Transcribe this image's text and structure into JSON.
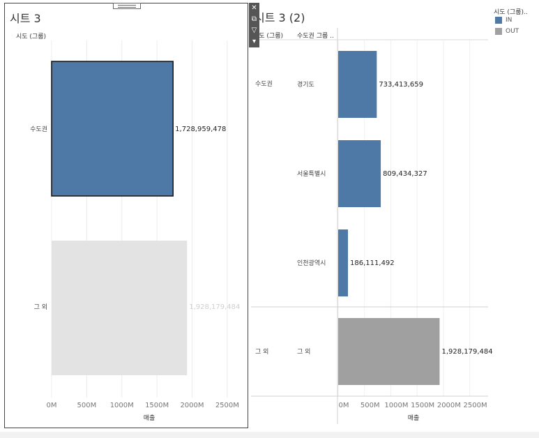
{
  "sheet1": {
    "title": "시트 3",
    "header": "시도 (그룹)",
    "xlabel": "매출",
    "ticks": [
      "0M",
      "500M",
      "1000M",
      "1500M",
      "2000M",
      "2500M"
    ]
  },
  "sheet2": {
    "title": "시트 3 (2)",
    "header_col1": "시도 (그룹)",
    "header_col2": "수도권 그룹 ..",
    "xlabel": "매출",
    "ticks": [
      "0M",
      "500M",
      "1000M",
      "1500M",
      "2000M",
      "2500M"
    ]
  },
  "legend": {
    "title": "시도 (그룹)..",
    "items": [
      {
        "label": "IN",
        "color": "#4e79a7"
      },
      {
        "label": "OUT",
        "color": "#a0a0a0"
      }
    ]
  },
  "toolbar": {
    "close_icon": "close-icon",
    "popout_icon": "popout-icon",
    "filter_icon": "filter-icon",
    "menu_icon": "dropdown-icon"
  },
  "chart_data": [
    {
      "type": "bar",
      "orientation": "horizontal",
      "title": "시트 3",
      "categories": [
        "수도권",
        "그 외"
      ],
      "values": [
        1728959478,
        1928179484
      ],
      "data_labels": [
        "1,728,959,478",
        "1,928,179,484"
      ],
      "colors": [
        "#4e79a7",
        "#e3e3e3"
      ],
      "xlabel": "매출",
      "xlim": [
        0,
        2700000000
      ],
      "grid": true
    },
    {
      "type": "bar",
      "orientation": "horizontal",
      "title": "시트 3 (2)",
      "groups": [
        "수도권",
        "수도권",
        "수도권",
        "그 외"
      ],
      "categories": [
        "경기도",
        "서울특별시",
        "인천광역시",
        "그 외"
      ],
      "values": [
        733413659,
        809434327,
        186111492,
        1928179484
      ],
      "data_labels": [
        "733,413,659",
        "809,434,327",
        "186,111,492",
        "1,928,179,484"
      ],
      "colors": [
        "#4e79a7",
        "#4e79a7",
        "#4e79a7",
        "#a0a0a0"
      ],
      "xlabel": "매출",
      "xlim": [
        0,
        2850000000
      ],
      "grid": true
    }
  ]
}
